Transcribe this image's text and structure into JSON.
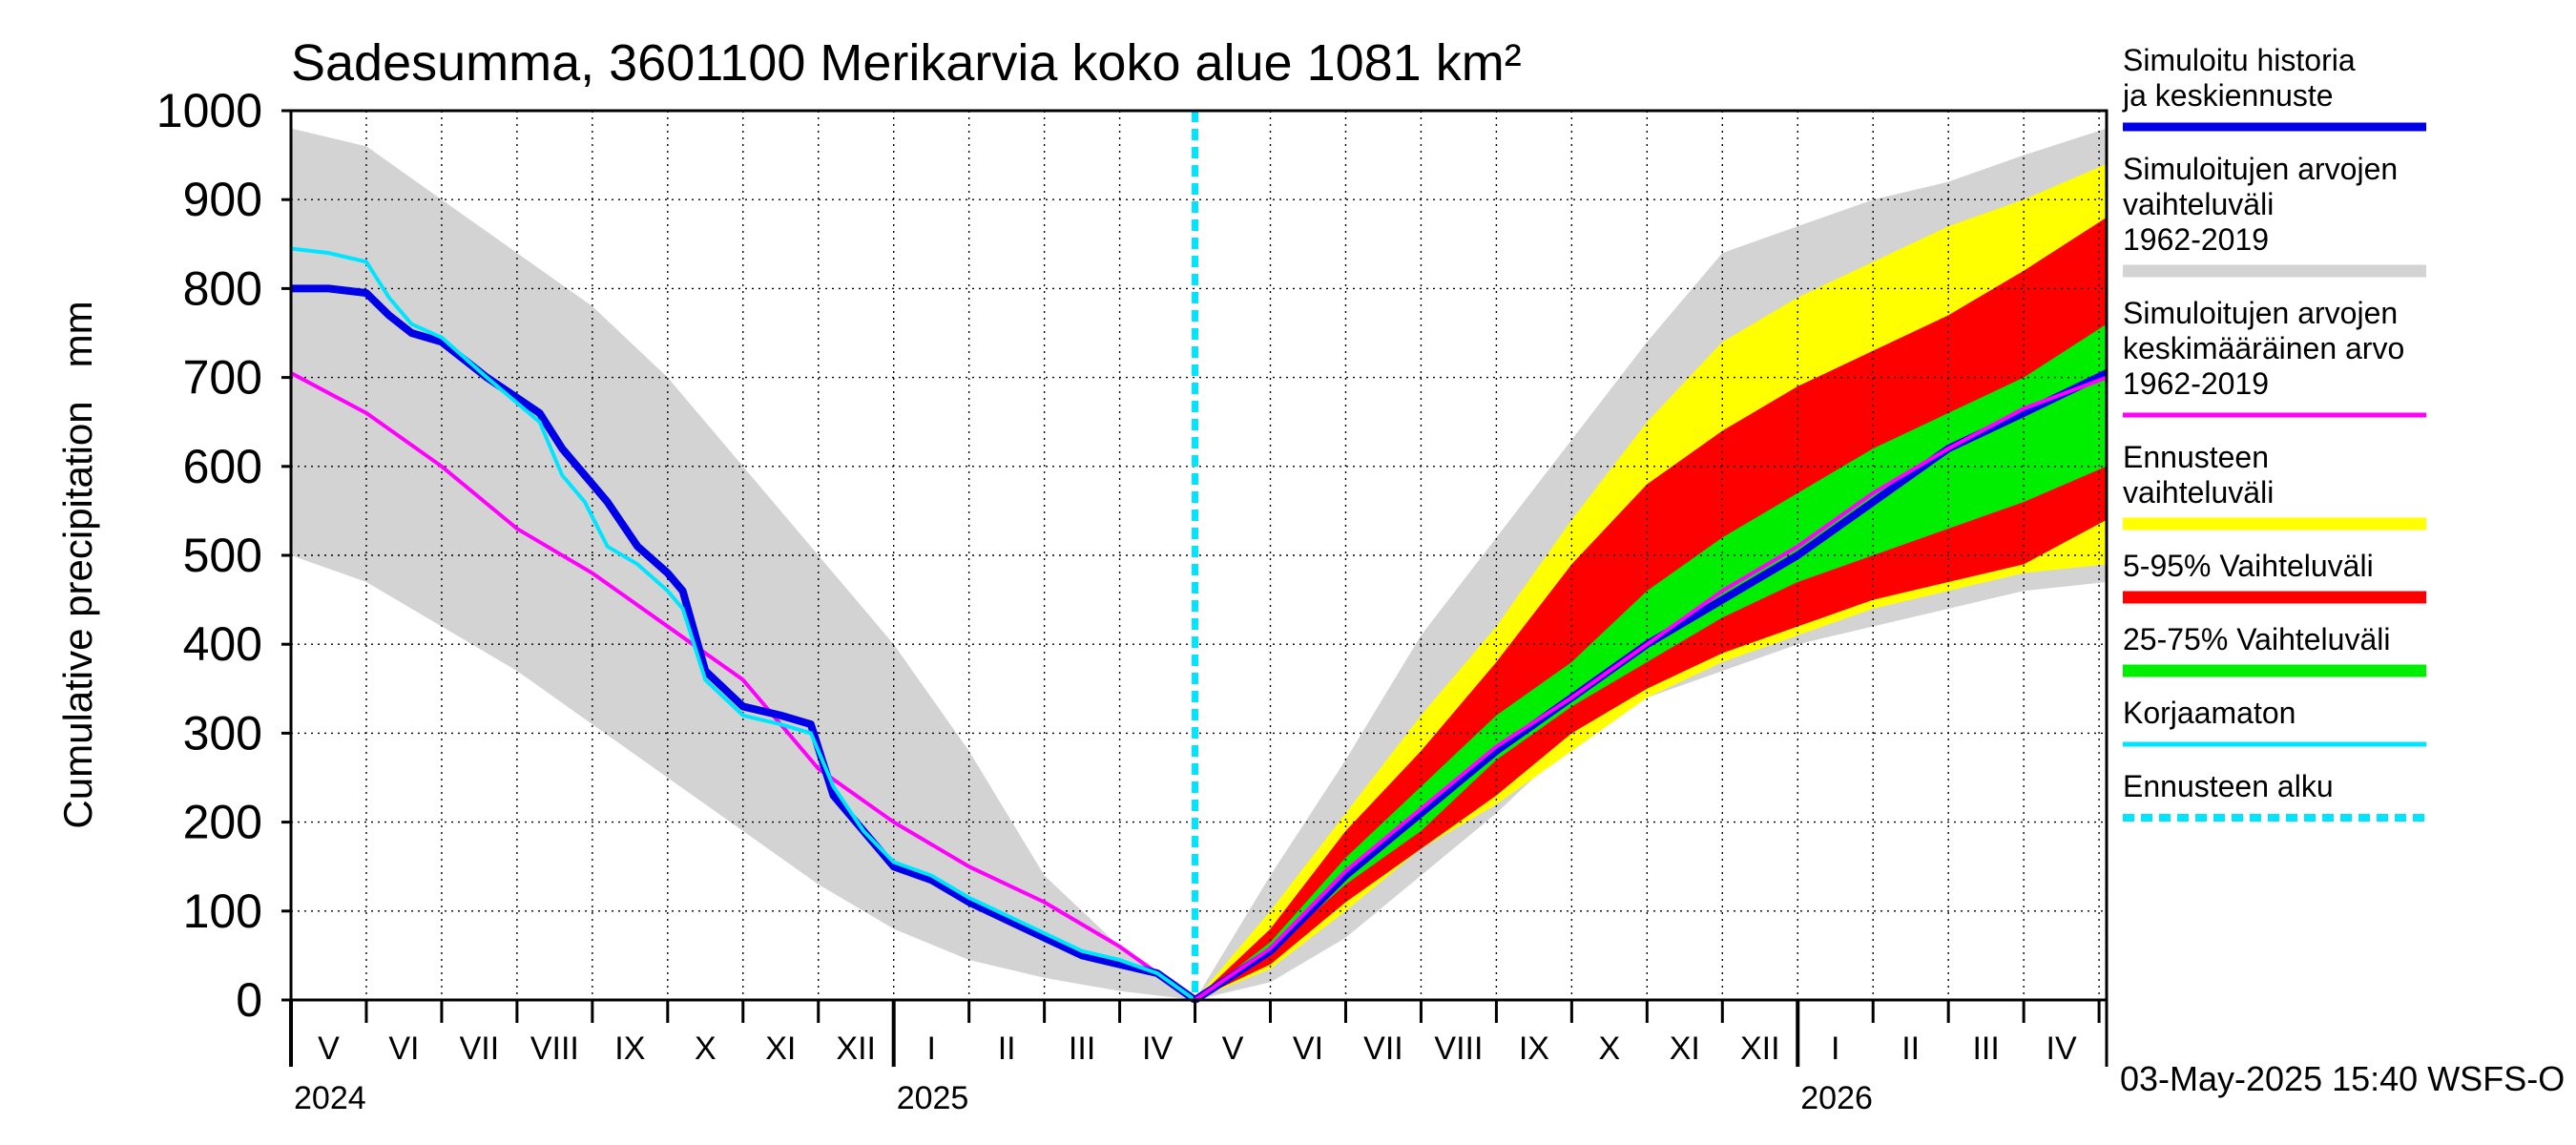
{
  "chart_data": {
    "type": "area",
    "title": "Sadesumma, 3601100 Merikarvia koko alue 1081 km²",
    "ylabel": "Cumulative precipitation   mm",
    "xlabel": "",
    "ylim": [
      0,
      1000
    ],
    "y_ticks": [
      0,
      100,
      200,
      300,
      400,
      500,
      600,
      700,
      800,
      900,
      1000
    ],
    "x_range_months": [
      0,
      24.1
    ],
    "forecast_start_month": 12,
    "month_labels": [
      {
        "m": 0.5,
        "label": "V"
      },
      {
        "m": 1.5,
        "label": "VI"
      },
      {
        "m": 2.5,
        "label": "VII"
      },
      {
        "m": 3.5,
        "label": "VIII"
      },
      {
        "m": 4.5,
        "label": "IX"
      },
      {
        "m": 5.5,
        "label": "X"
      },
      {
        "m": 6.5,
        "label": "XI"
      },
      {
        "m": 7.5,
        "label": "XII"
      },
      {
        "m": 8.5,
        "label": "I"
      },
      {
        "m": 9.5,
        "label": "II"
      },
      {
        "m": 10.5,
        "label": "III"
      },
      {
        "m": 11.5,
        "label": "IV"
      },
      {
        "m": 12.5,
        "label": "V"
      },
      {
        "m": 13.5,
        "label": "VI"
      },
      {
        "m": 14.5,
        "label": "VII"
      },
      {
        "m": 15.5,
        "label": "VIII"
      },
      {
        "m": 16.5,
        "label": "IX"
      },
      {
        "m": 17.5,
        "label": "X"
      },
      {
        "m": 18.5,
        "label": "XI"
      },
      {
        "m": 19.5,
        "label": "XII"
      },
      {
        "m": 20.5,
        "label": "I"
      },
      {
        "m": 21.5,
        "label": "II"
      },
      {
        "m": 22.5,
        "label": "III"
      },
      {
        "m": 23.5,
        "label": "IV"
      }
    ],
    "year_labels": [
      {
        "m": 0,
        "label": "2024"
      },
      {
        "m": 8,
        "label": "2025"
      },
      {
        "m": 20,
        "label": "2026"
      }
    ],
    "history_hist_range": {
      "x": [
        0,
        1,
        2,
        3,
        4,
        5,
        6,
        7,
        8,
        9,
        10,
        11,
        12
      ],
      "low": [
        500,
        470,
        420,
        370,
        310,
        250,
        190,
        130,
        80,
        45,
        25,
        10,
        0
      ],
      "high": [
        980,
        960,
        900,
        840,
        780,
        700,
        600,
        500,
        400,
        280,
        140,
        60,
        0
      ]
    },
    "history_series": [
      {
        "name": "Simuloitu historia ja keskiennuste",
        "x": [
          0,
          0.5,
          1.0,
          1.3,
          1.6,
          2.0,
          2.6,
          3.3,
          3.6,
          3.9,
          4.2,
          4.6,
          5.0,
          5.2,
          5.5,
          6.0,
          6.5,
          6.9,
          7.2,
          7.6,
          8.0,
          8.5,
          9.0,
          9.5,
          10.0,
          10.5,
          11.0,
          11.5,
          12.0
        ],
        "y": [
          800,
          800,
          795,
          770,
          750,
          740,
          700,
          660,
          620,
          590,
          560,
          510,
          480,
          460,
          370,
          330,
          320,
          310,
          230,
          190,
          150,
          135,
          110,
          90,
          70,
          50,
          40,
          30,
          0
        ]
      },
      {
        "name": "Korjaamaton",
        "x": [
          0,
          0.5,
          1.0,
          1.3,
          1.6,
          2.0,
          2.6,
          3.3,
          3.6,
          3.9,
          4.2,
          4.6,
          5.0,
          5.2,
          5.5,
          6.0,
          6.5,
          6.9,
          7.2,
          7.6,
          8.0,
          8.5,
          9.0,
          9.5,
          10.0,
          10.5,
          11.0,
          11.5,
          12.0
        ],
        "y": [
          845,
          840,
          830,
          790,
          760,
          745,
          700,
          650,
          590,
          560,
          510,
          490,
          460,
          440,
          360,
          320,
          310,
          300,
          240,
          190,
          155,
          140,
          115,
          95,
          75,
          55,
          45,
          30,
          0
        ]
      },
      {
        "name": "Simuloitujen arvojen keskimääräinen arvo 1962-2019",
        "x": [
          0,
          1,
          2,
          3,
          4,
          5,
          6,
          7,
          8,
          9,
          10,
          11,
          12
        ],
        "y": [
          705,
          660,
          600,
          530,
          480,
          420,
          360,
          260,
          200,
          150,
          110,
          60,
          0
        ]
      }
    ],
    "forecast_x": [
      12,
      13,
      14,
      15,
      16,
      17,
      18,
      19,
      20,
      21,
      22,
      23,
      24.1
    ],
    "forecast_bands": [
      {
        "name": "Simuloitujen arvojen vaihteluväli 1962-2019",
        "low": [
          0,
          20,
          70,
          140,
          210,
          290,
          340,
          370,
          400,
          420,
          440,
          460,
          470
        ],
        "high": [
          0,
          140,
          270,
          410,
          520,
          630,
          740,
          840,
          870,
          900,
          920,
          950,
          980
        ]
      },
      {
        "name": "Ennusteen vaihteluväli",
        "low": [
          0,
          35,
          100,
          170,
          220,
          280,
          340,
          380,
          410,
          440,
          460,
          480,
          490
        ],
        "high": [
          0,
          100,
          210,
          320,
          420,
          540,
          650,
          740,
          790,
          830,
          870,
          900,
          940
        ]
      },
      {
        "name": "5-95% Vaihteluväli",
        "low": [
          0,
          40,
          110,
          170,
          230,
          300,
          350,
          390,
          420,
          450,
          470,
          490,
          540
        ],
        "high": [
          0,
          80,
          190,
          280,
          380,
          490,
          580,
          640,
          690,
          730,
          770,
          820,
          880
        ]
      },
      {
        "name": "25-75% Vaihteluväli",
        "low": [
          0,
          55,
          130,
          190,
          270,
          330,
          380,
          430,
          470,
          500,
          530,
          560,
          600
        ],
        "high": [
          0,
          65,
          160,
          240,
          320,
          380,
          460,
          520,
          570,
          620,
          660,
          700,
          760
        ]
      }
    ],
    "forecast_series": [
      {
        "name": "Simuloitu historia ja keskiennuste",
        "y": [
          0,
          55,
          140,
          210,
          280,
          340,
          400,
          450,
          500,
          560,
          620,
          660,
          705
        ]
      },
      {
        "name": "Simuloitujen arvojen keskimääräinen arvo 1962-2019",
        "y": [
          0,
          58,
          145,
          215,
          285,
          340,
          400,
          460,
          510,
          570,
          620,
          665,
          700
        ]
      }
    ],
    "colors": {
      "history": "#0000e8",
      "hist_range": "#d3d3d3",
      "mean": "#ff00ff",
      "forecast_range": "#ffff00",
      "range_5_95": "#ff0000",
      "range_25_75": "#00ee00",
      "uncorrected": "#00e5ff",
      "forecast_start": "#00e5ff"
    },
    "legend": [
      {
        "label": "Simuloitu historia ja keskiennuste",
        "color_key": "history",
        "style": "thick"
      },
      {
        "label": "Simuloitujen arvojen vaihteluväli 1962-2019",
        "color_key": "hist_range",
        "style": "band"
      },
      {
        "label": "Simuloitujen arvojen keskimääräinen arvo 1962-2019",
        "color_key": "mean",
        "style": "thin"
      },
      {
        "label": "Ennusteen vaihteluväli",
        "color_key": "forecast_range",
        "style": "band"
      },
      {
        "label": "5-95% Vaihteluväli",
        "color_key": "range_5_95",
        "style": "band"
      },
      {
        "label": "25-75% Vaihteluväli",
        "color_key": "range_25_75",
        "style": "band"
      },
      {
        "label": "Korjaamaton",
        "color_key": "uncorrected",
        "style": "thin"
      },
      {
        "label": "Ennusteen alku",
        "color_key": "forecast_start",
        "style": "dashed"
      }
    ],
    "footer": "03-May-2025 15:40 WSFS-O"
  }
}
